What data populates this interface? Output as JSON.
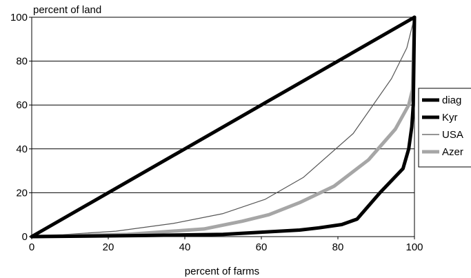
{
  "chart_data": {
    "type": "line",
    "title": "",
    "ylabel": "percent of land",
    "xlabel": "percent of farms",
    "xlim": [
      0,
      100
    ],
    "ylim": [
      0,
      100
    ],
    "x_ticks": [
      "0",
      "20",
      "40",
      "60",
      "80",
      "100"
    ],
    "y_ticks": [
      "0",
      "20",
      "40",
      "60",
      "80",
      "100"
    ],
    "grid": "horizontal",
    "legend_position": "right",
    "series": [
      {
        "name": "diag",
        "color": "#000000",
        "stroke_class": "heavy",
        "points": [
          [
            0,
            0
          ],
          [
            100,
            100
          ]
        ]
      },
      {
        "name": "Kyr",
        "color": "#000000",
        "stroke_class": "heavy",
        "points": [
          [
            0,
            0
          ],
          [
            30,
            0.5
          ],
          [
            50,
            1
          ],
          [
            60,
            2
          ],
          [
            70,
            3
          ],
          [
            75,
            4
          ],
          [
            81,
            5.5
          ],
          [
            85,
            8
          ],
          [
            91,
            20
          ],
          [
            97,
            31
          ],
          [
            98.5,
            40
          ],
          [
            99.3,
            50
          ],
          [
            99.7,
            60
          ],
          [
            100,
            100
          ]
        ]
      },
      {
        "name": "USA",
        "color": "#555555",
        "stroke_class": "thin",
        "points": [
          [
            0,
            0
          ],
          [
            22,
            2.5
          ],
          [
            37,
            6
          ],
          [
            50,
            10.5
          ],
          [
            61,
            17
          ],
          [
            71,
            27
          ],
          [
            84,
            47
          ],
          [
            94,
            72
          ],
          [
            98,
            86
          ],
          [
            100,
            100
          ]
        ]
      },
      {
        "name": "Azer",
        "color": "#a6a6a6",
        "stroke_class": "heavy",
        "points": [
          [
            0,
            0
          ],
          [
            25,
            1
          ],
          [
            45,
            3.5
          ],
          [
            55,
            7
          ],
          [
            62,
            10
          ],
          [
            70,
            15.5
          ],
          [
            79,
            23
          ],
          [
            88,
            35
          ],
          [
            95,
            49
          ],
          [
            98.5,
            60
          ],
          [
            99.5,
            67
          ],
          [
            100,
            100
          ]
        ]
      }
    ]
  }
}
